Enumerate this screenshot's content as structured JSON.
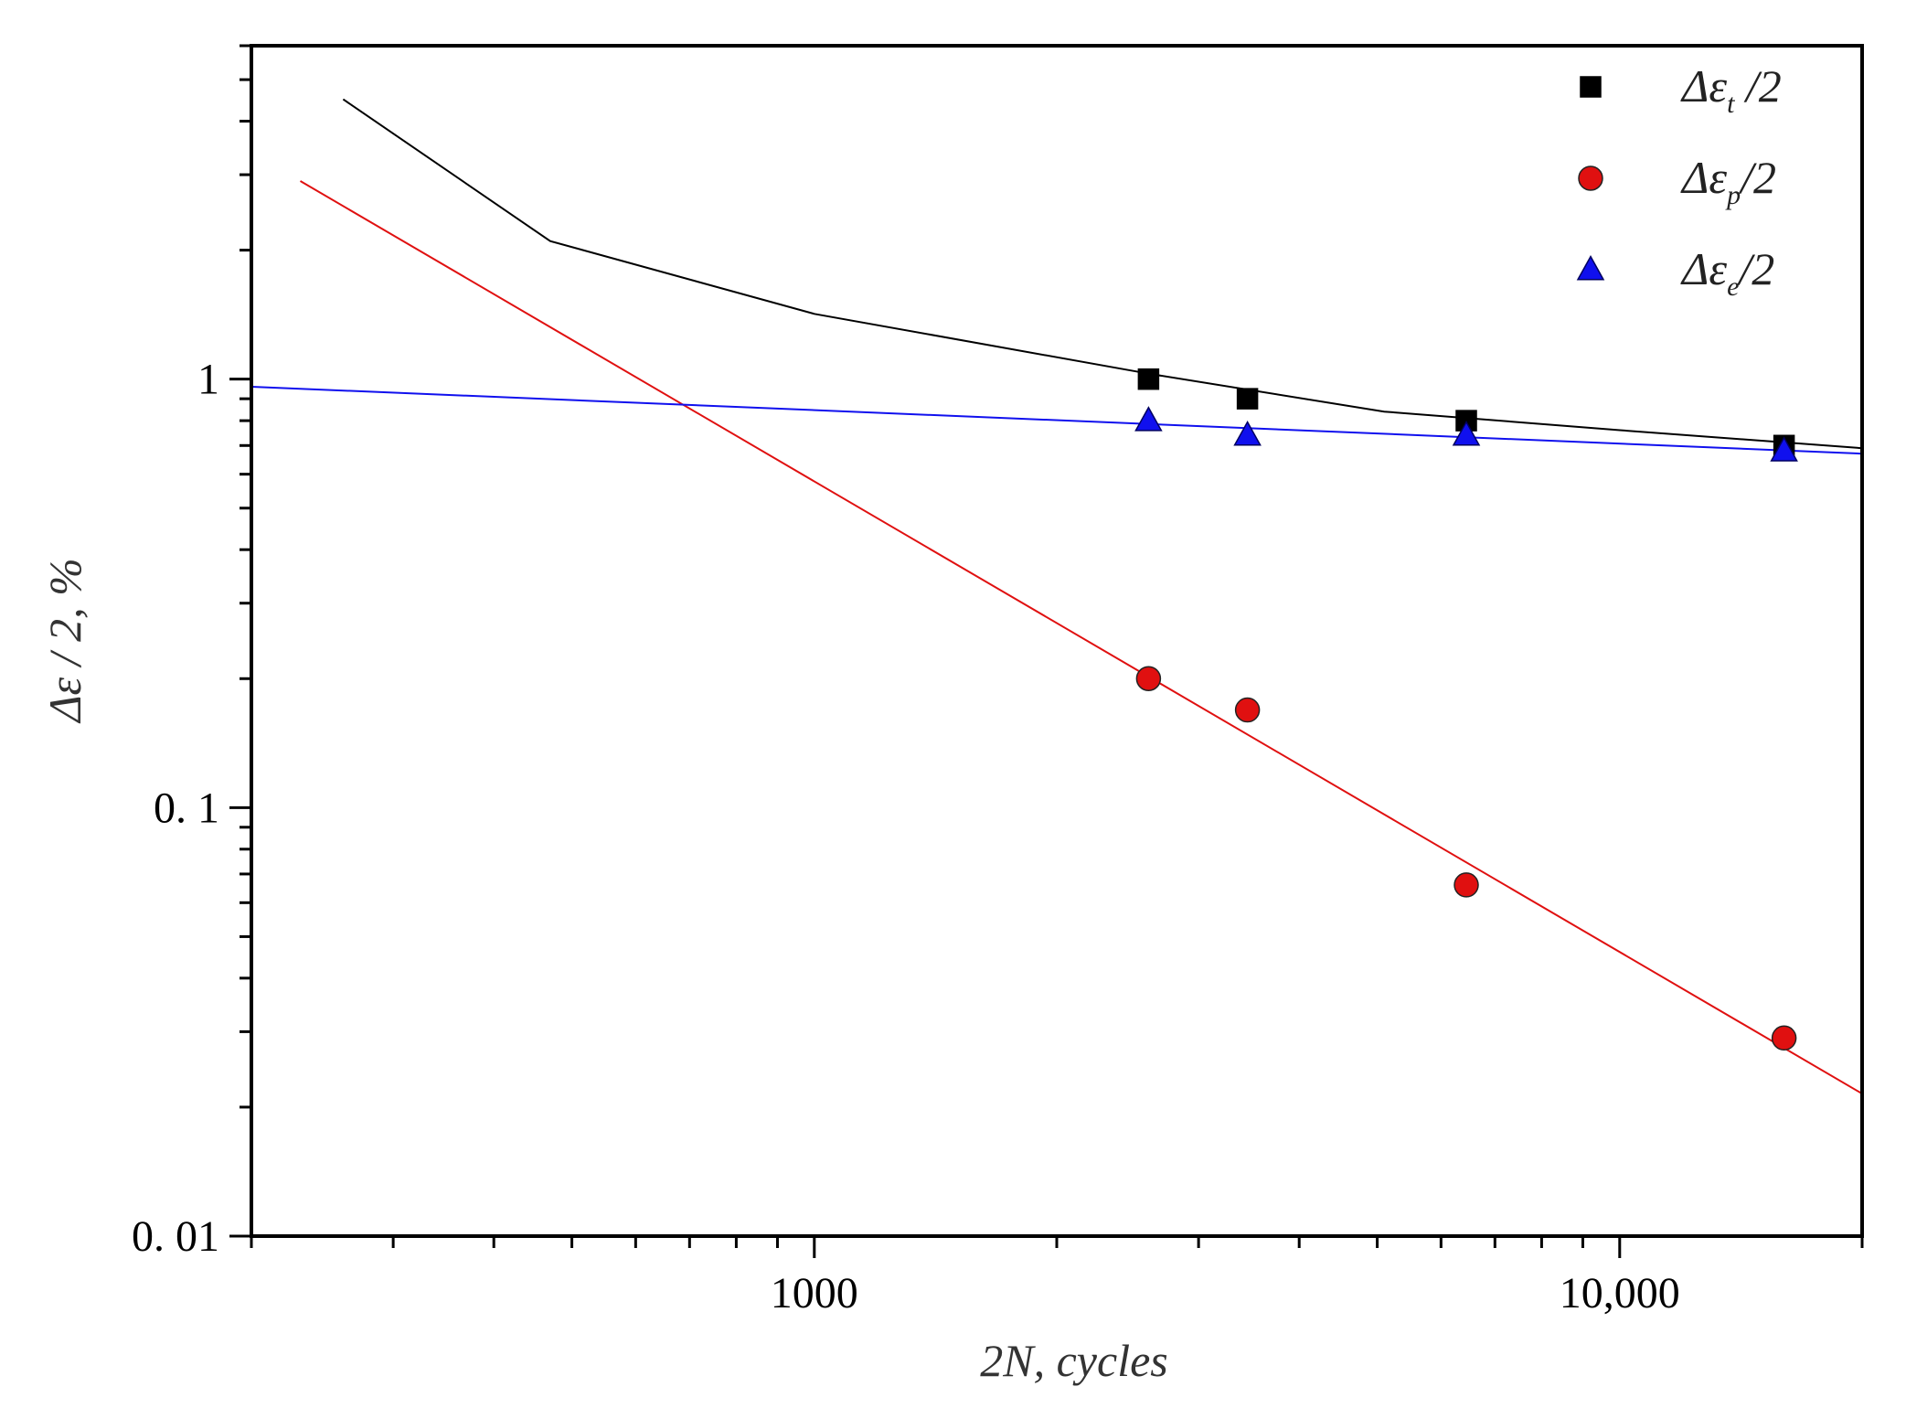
{
  "chart_data": {
    "type": "scatter",
    "x_scale": "log",
    "y_scale": "log",
    "xlim": [
      200,
      20000
    ],
    "ylim": [
      0.01,
      6
    ],
    "xlabel": "2N, cycles",
    "ylabel": "Δε / 2, %",
    "x_tick_labels": [
      {
        "value": 1000,
        "label": "1000"
      },
      {
        "value": 10000,
        "label": "10,000"
      }
    ],
    "y_tick_labels": [
      {
        "value": 1,
        "label": "1"
      },
      {
        "value": 0.1,
        "label": "0. 1"
      },
      {
        "value": 0.01,
        "label": "0. 01"
      }
    ],
    "legend_position": "top-right",
    "series": [
      {
        "name": "Δε_t /2",
        "legend": {
          "base": "Δε",
          "sub": "t",
          "tail": " /2"
        },
        "marker": "square",
        "color": "#000000",
        "points": [
          [
            2600,
            1.0
          ],
          [
            3450,
            0.9
          ],
          [
            6450,
            0.8
          ],
          [
            16000,
            0.7
          ]
        ],
        "fit_line": [
          [
            260,
            4.5
          ],
          [
            470,
            2.1
          ],
          [
            1000,
            1.42
          ],
          [
            2600,
            1.03
          ],
          [
            5100,
            0.84
          ],
          [
            10000,
            0.76
          ],
          [
            20000,
            0.69
          ]
        ]
      },
      {
        "name": "Δε_p/2",
        "legend": {
          "base": "Δε",
          "sub": "p",
          "tail": "/2"
        },
        "marker": "circle",
        "color": "#e01010",
        "points": [
          [
            2600,
            0.2
          ],
          [
            3450,
            0.169
          ],
          [
            6450,
            0.066
          ],
          [
            16000,
            0.029
          ]
        ],
        "fit_line": [
          [
            230,
            2.9
          ],
          [
            20000,
            0.0215
          ]
        ]
      },
      {
        "name": "Δε_e/2",
        "legend": {
          "base": "Δε",
          "sub": "e",
          "tail": "/2"
        },
        "marker": "triangle",
        "color": "#1010ee",
        "points": [
          [
            2600,
            0.8
          ],
          [
            3450,
            0.74
          ],
          [
            6450,
            0.74
          ],
          [
            16000,
            0.68
          ]
        ],
        "fit_line": [
          [
            200,
            0.96
          ],
          [
            20000,
            0.67
          ]
        ]
      }
    ]
  }
}
